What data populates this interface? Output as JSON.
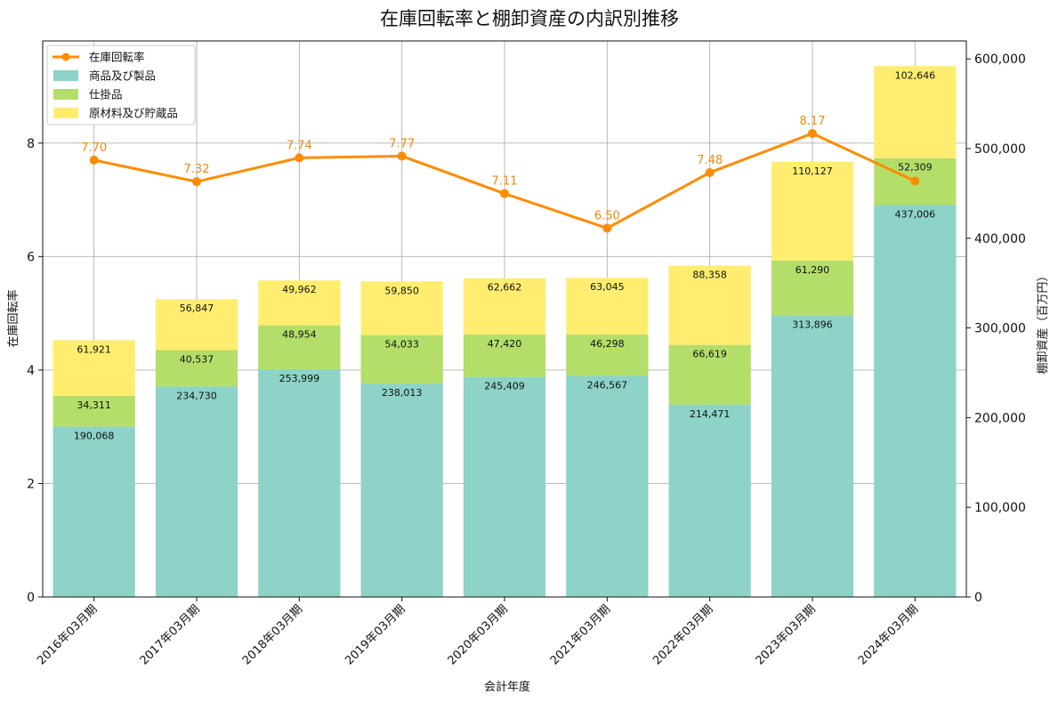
{
  "chart_data": {
    "type": "bar",
    "title": "在庫回転率と棚卸資産の内訳別推移",
    "xlabel": "会計年度",
    "ylabel_left": "在庫回転率",
    "ylabel_right": "棚卸資産（百万円）",
    "categories": [
      "2016年03月期",
      "2017年03月期",
      "2018年03月期",
      "2019年03月期",
      "2020年03月期",
      "2021年03月期",
      "2022年03月期",
      "2023年03月期",
      "2024年03月期"
    ],
    "series": [
      {
        "name": "商品及び製品",
        "type": "bar",
        "axis": "right",
        "color": "#8dd3c7",
        "values": [
          190068,
          234730,
          253999,
          238013,
          245409,
          246567,
          214471,
          313896,
          437006
        ],
        "labels": [
          "190,068",
          "234,730",
          "253,999",
          "238,013",
          "245,409",
          "246,567",
          "214,471",
          "313,896",
          "437,006"
        ]
      },
      {
        "name": "仕掛品",
        "type": "bar",
        "axis": "right",
        "color": "#b3de69",
        "values": [
          34311,
          40537,
          48954,
          54033,
          47420,
          46298,
          66619,
          61290,
          52309
        ],
        "labels": [
          "34,311",
          "40,537",
          "48,954",
          "54,033",
          "47,420",
          "46,298",
          "66,619",
          "61,290",
          "52,309"
        ]
      },
      {
        "name": "原材料及び貯蔵品",
        "type": "bar",
        "axis": "right",
        "color": "#ffed6f",
        "values": [
          61921,
          56847,
          49962,
          59850,
          62662,
          63045,
          88358,
          110127,
          102646
        ],
        "labels": [
          "61,921",
          "56,847",
          "49,962",
          "59,850",
          "62,662",
          "63,045",
          "88,358",
          "110,127",
          "102,646"
        ]
      },
      {
        "name": "在庫回転率",
        "type": "line",
        "axis": "left",
        "color": "#ff8c00",
        "values": [
          7.7,
          7.32,
          7.74,
          7.77,
          7.11,
          6.5,
          7.48,
          8.17,
          7.33
        ],
        "labels": [
          "7.70",
          "7.32",
          "7.74",
          "7.77",
          "7.11",
          "6.50",
          "7.48",
          "8.17",
          ""
        ]
      }
    ],
    "ylim_left": [
      0,
      9.8
    ],
    "yticks_left": [
      "0",
      "2",
      "4",
      "6",
      "8"
    ],
    "ylim_right": [
      0,
      620000
    ],
    "yticks_right": [
      "0",
      "100,000",
      "200,000",
      "300,000",
      "400,000",
      "500,000",
      "600,000"
    ],
    "legend_position": "top-left",
    "grid": true
  }
}
